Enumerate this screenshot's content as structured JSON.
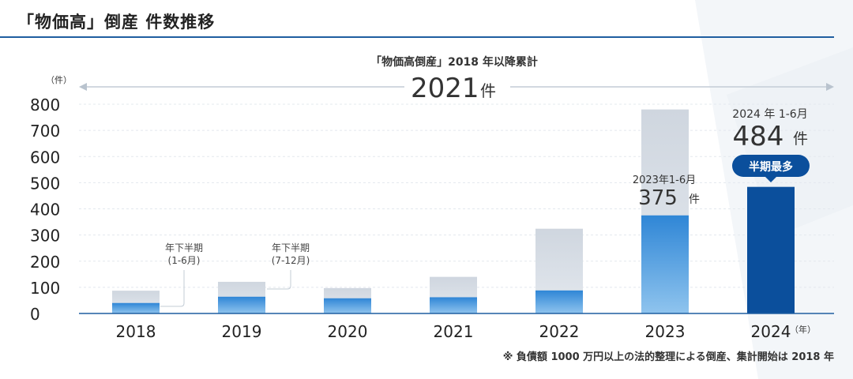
{
  "page_title": "「物価高」倒産 件数推移",
  "colors": {
    "accent": "#1f5ea0",
    "total_bar": "#d2d9e2",
    "h1_bar_top": "#2f86d6",
    "h1_bar_bottom": "#8fc4ee",
    "latest_bar": "#0b4f9c",
    "badge": "#0b4f9c"
  },
  "summary": {
    "caption": "「物価高倒産」2018 年以降累計",
    "total_value": "2021",
    "total_unit": "件"
  },
  "footnote": "※ 負債額 1000 万円以上の法的整理による倒産、集計開始は 2018 年",
  "chart_data": {
    "type": "bar",
    "ylabel": "（件）",
    "ylim": [
      0,
      800
    ],
    "yticks": [
      "0",
      "100",
      "200",
      "300",
      "400",
      "500",
      "600",
      "700",
      "800"
    ],
    "categories": [
      "2018",
      "2019",
      "2020",
      "2021",
      "2022",
      "2023",
      "2024"
    ],
    "x_unit_suffix": "（年）",
    "series": [
      {
        "name": "年下半期",
        "values": [
          87,
          121,
          97,
          140,
          324,
          780,
          null
        ]
      },
      {
        "name": "(1-6月)",
        "values": [
          40,
          64,
          58,
          62,
          88,
          375,
          484
        ]
      }
    ],
    "legend_callouts": [
      {
        "line1": "年下半期",
        "line2": "(1-6月)"
      },
      {
        "line1": "年下半期",
        "line2": "(7-12月)"
      }
    ],
    "annotations": {
      "h2023": {
        "line1": "2023年1-6月",
        "value": "375",
        "unit": "件"
      },
      "h2024": {
        "line1": "2024 年 1-6月",
        "value": "484",
        "unit": "件",
        "badge": "半期最多"
      }
    }
  }
}
